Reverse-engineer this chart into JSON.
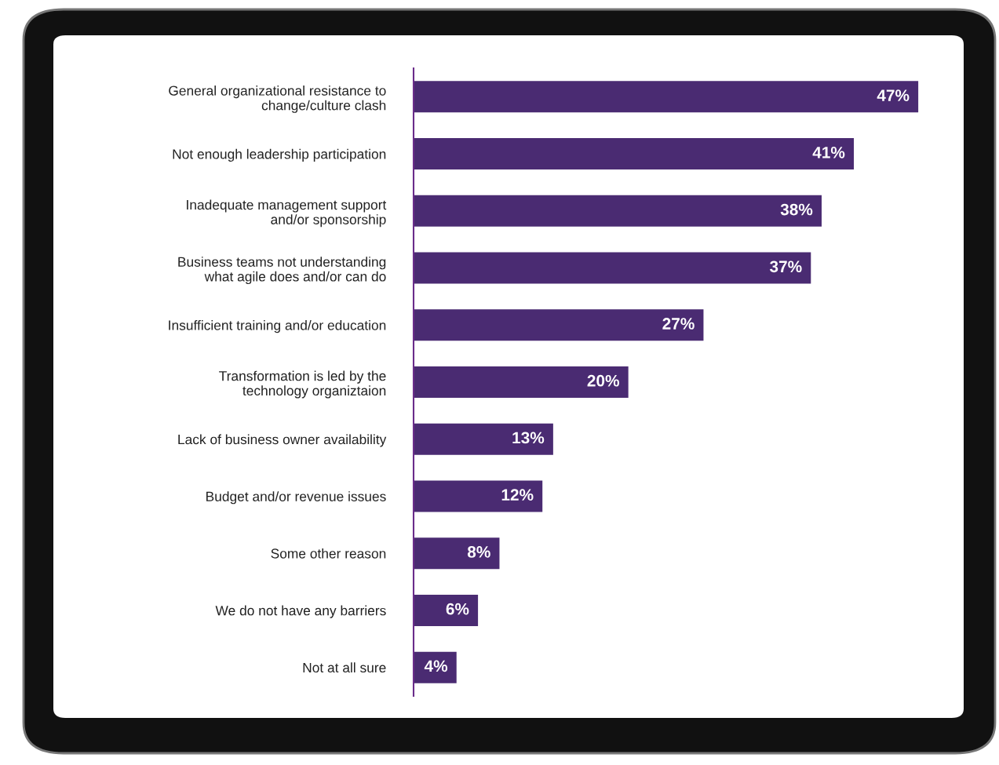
{
  "chart_data": {
    "type": "bar",
    "orientation": "horizontal",
    "categories": [
      "General organizational resistance to\nchange/culture clash",
      "Not enough leadership participation",
      "Inadequate management support\nand/or sponsorship",
      "Business teams not understanding\nwhat agile does and/or can do",
      "Insufficient training and/or education",
      "Transformation is led by the\ntechnology organiztaion",
      "Lack of business owner availability",
      "Budget and/or revenue issues",
      "Some other reason",
      "We do not have any barriers",
      "Not at all sure"
    ],
    "values": [
      47,
      41,
      38,
      37,
      27,
      20,
      13,
      12,
      8,
      6,
      4
    ],
    "value_labels": [
      "47%",
      "41%",
      "38%",
      "37%",
      "27%",
      "20%",
      "13%",
      "12%",
      "8%",
      "6%",
      "4%"
    ],
    "color": "#4a2b72"
  }
}
